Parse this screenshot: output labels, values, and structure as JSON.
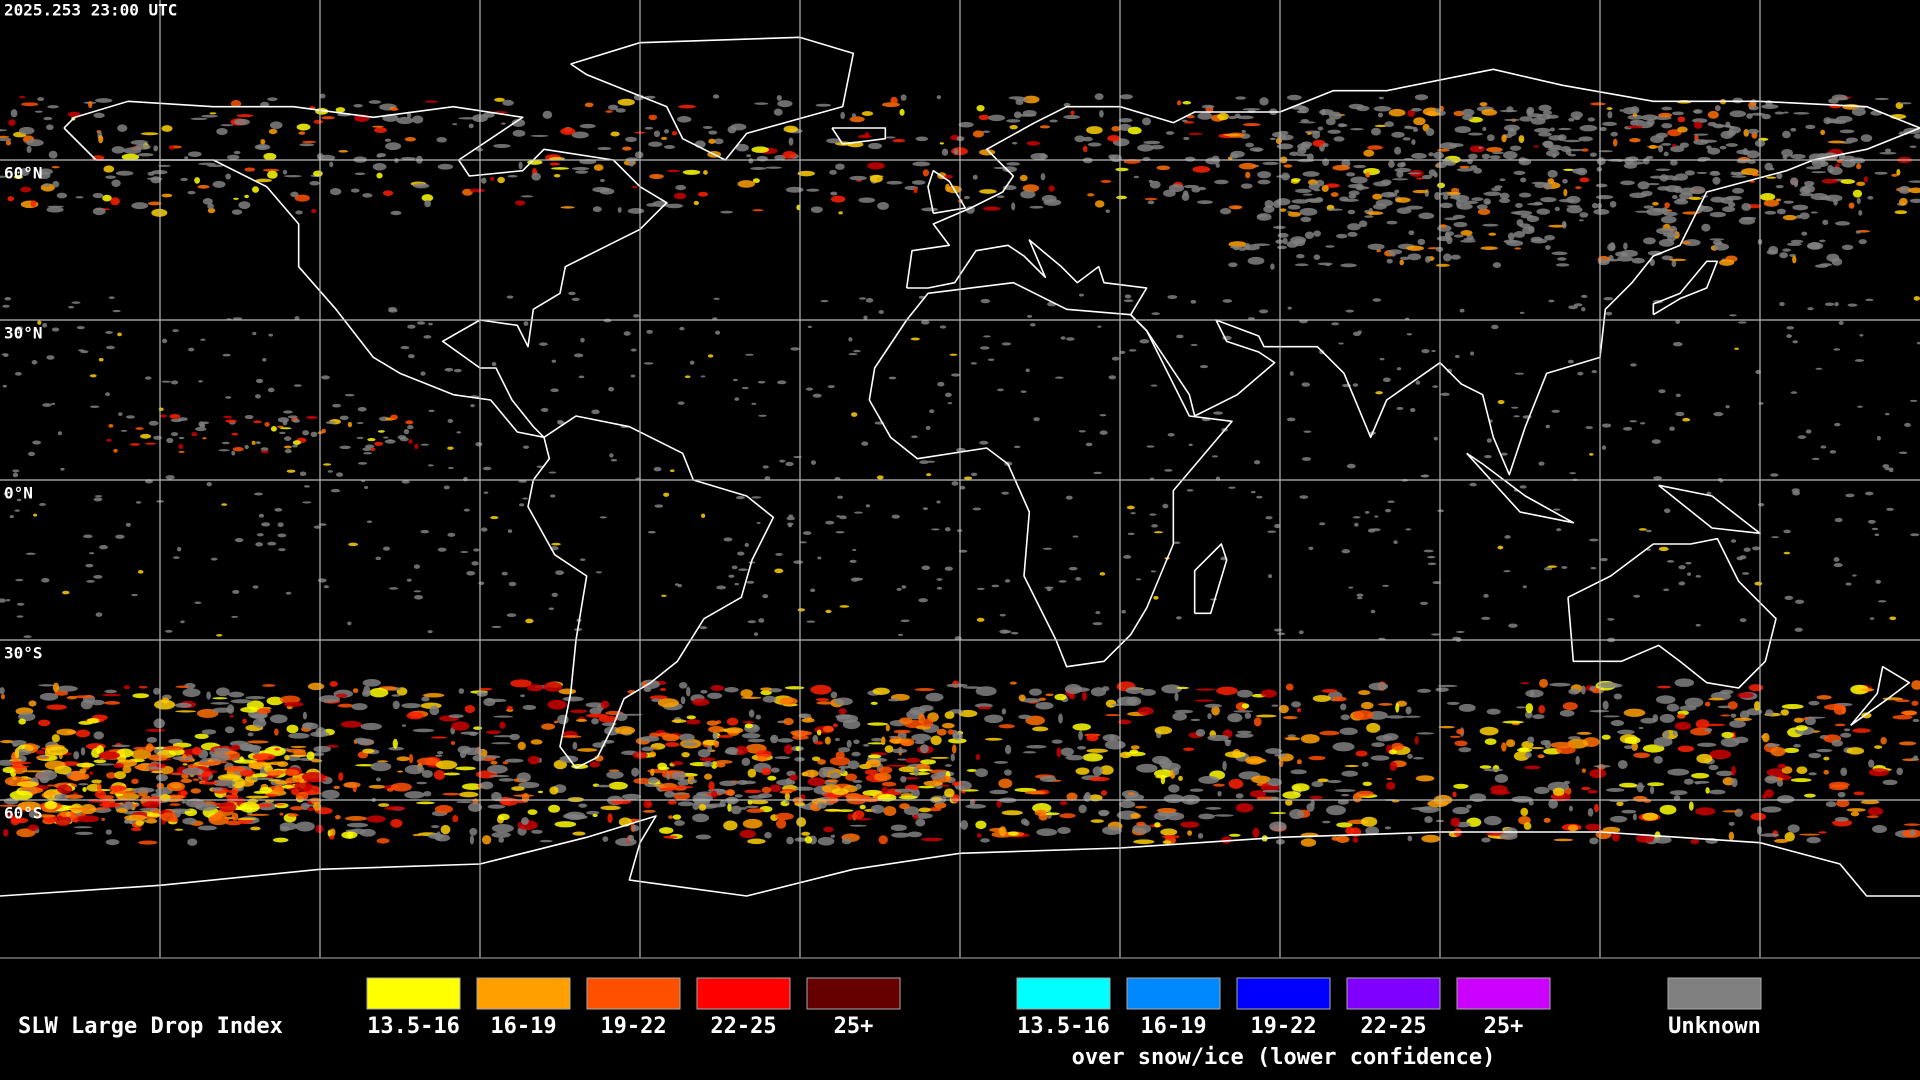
{
  "timestamp": "2025.253 23:00 UTC",
  "latitude_labels": [
    "60°N",
    "30°N",
    "0°N",
    "30°S",
    "60°S"
  ],
  "legend": {
    "title": "SLW Large Drop Index",
    "groups": [
      {
        "items": [
          {
            "label": "13.5-16",
            "color": "#ffff00"
          },
          {
            "label": "16-19",
            "color": "#ffa000"
          },
          {
            "label": "19-22",
            "color": "#ff5000"
          },
          {
            "label": "22-25",
            "color": "#ff0000"
          },
          {
            "label": "25+",
            "color": "#660000"
          }
        ]
      },
      {
        "items": [
          {
            "label": "13.5-16",
            "color": "#00ffff"
          },
          {
            "label": "16-19",
            "color": "#0088ff"
          },
          {
            "label": "19-22",
            "color": "#0000ff"
          },
          {
            "label": "22-25",
            "color": "#8000ff"
          },
          {
            "label": "25+",
            "color": "#cc00ff"
          }
        ],
        "caption": "over snow/ice (lower confidence)"
      },
      {
        "items": [
          {
            "label": "Unknown",
            "color": "#808080"
          }
        ]
      }
    ]
  }
}
